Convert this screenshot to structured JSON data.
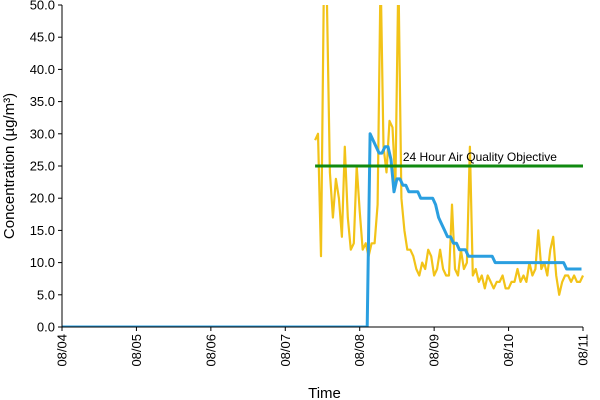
{
  "chart_data": {
    "type": "line",
    "xlabel": "Time",
    "ylabel": "Concentration (µg/m³)",
    "ylim": [
      0,
      50
    ],
    "yticks": [
      "0.0",
      "5.0",
      "10.0",
      "15.0",
      "20.0",
      "25.0",
      "30.0",
      "35.0",
      "40.0",
      "45.0",
      "50.0"
    ],
    "xlim": [
      0,
      7
    ],
    "xticks": [
      "08/04",
      "08/05",
      "08/06",
      "08/07",
      "08/08",
      "08/09",
      "08/10",
      "08/11"
    ],
    "grid": false,
    "legend": "none",
    "annotation": {
      "text": "24 Hour Air Quality Objective",
      "at_value": 25
    },
    "series": [
      {
        "color": "#f2c318",
        "x": [
          3.4,
          3.44,
          3.48,
          3.52,
          3.56,
          3.6,
          3.64,
          3.68,
          3.72,
          3.76,
          3.8,
          3.84,
          3.88,
          3.92,
          3.96,
          4.0,
          4.04,
          4.08,
          4.12,
          4.16,
          4.2,
          4.24,
          4.28,
          4.32,
          4.36,
          4.4,
          4.44,
          4.48,
          4.52,
          4.56,
          4.6,
          4.64,
          4.68,
          4.72,
          4.76,
          4.8,
          4.84,
          4.88,
          4.92,
          4.96,
          5.0,
          5.04,
          5.08,
          5.12,
          5.16,
          5.2,
          5.24,
          5.28,
          5.32,
          5.36,
          5.4,
          5.44,
          5.48,
          5.52,
          5.56,
          5.6,
          5.64,
          5.68,
          5.72,
          5.76,
          5.8,
          5.84,
          5.88,
          5.92,
          5.96,
          6.0,
          6.04,
          6.08,
          6.12,
          6.16,
          6.2,
          6.24,
          6.28,
          6.32,
          6.36,
          6.4,
          6.44,
          6.48,
          6.52,
          6.56,
          6.6,
          6.64,
          6.68,
          6.72,
          6.76,
          6.8,
          6.84,
          6.88,
          6.92,
          6.96,
          7.0
        ],
        "y": [
          29,
          30,
          11,
          55,
          50,
          24,
          17,
          23,
          20,
          14,
          28,
          17,
          12,
          13,
          25,
          18,
          12,
          13,
          11,
          13,
          13,
          19,
          55,
          28,
          24,
          32,
          31,
          22,
          55,
          20,
          15,
          12,
          12,
          11,
          9,
          8,
          10,
          9,
          12,
          11,
          8,
          9,
          12,
          9,
          8,
          8,
          19,
          9,
          8,
          12,
          9,
          10,
          28,
          8,
          9,
          7,
          8,
          6,
          8,
          7,
          6,
          7,
          7,
          8,
          6,
          6,
          7,
          7,
          9,
          7,
          8,
          7,
          10,
          8,
          9,
          15,
          9,
          10,
          8,
          12,
          14,
          8,
          5,
          7,
          8,
          8,
          7,
          8,
          7,
          7,
          8
        ]
      },
      {
        "color": "#2a9fe0",
        "x": [
          0.0,
          4.1,
          4.14,
          4.18,
          4.22,
          4.26,
          4.3,
          4.34,
          4.38,
          4.42,
          4.46,
          4.5,
          4.54,
          4.58,
          4.62,
          4.66,
          4.7,
          4.74,
          4.78,
          4.82,
          4.86,
          4.9,
          4.94,
          4.98,
          5.02,
          5.06,
          5.1,
          5.14,
          5.18,
          5.22,
          5.26,
          5.3,
          5.34,
          5.38,
          5.42,
          5.46,
          5.5,
          5.54,
          5.58,
          5.62,
          5.66,
          5.7,
          5.74,
          5.78,
          5.82,
          5.86,
          5.9,
          5.94,
          5.98,
          6.02,
          6.06,
          6.1,
          6.14,
          6.18,
          6.22,
          6.26,
          6.3,
          6.34,
          6.38,
          6.42,
          6.46,
          6.5,
          6.54,
          6.58,
          6.62,
          6.66,
          6.7,
          6.74,
          6.78,
          6.82,
          6.86,
          6.9,
          6.94,
          6.98
        ],
        "y": [
          0,
          0,
          30,
          29,
          28,
          27,
          27,
          28,
          28,
          26,
          21,
          23,
          23,
          22,
          22,
          21,
          21,
          21,
          21,
          20,
          20,
          20,
          20,
          20,
          19,
          17,
          16,
          15,
          14,
          14,
          13,
          13,
          12,
          12,
          12,
          11,
          11,
          11,
          11,
          11,
          11,
          11,
          11,
          11,
          10,
          10,
          10,
          10,
          10,
          10,
          10,
          10,
          10,
          10,
          10,
          10,
          10,
          10,
          10,
          10,
          10,
          10,
          10,
          10,
          10,
          10,
          10,
          10,
          9,
          9,
          9,
          9,
          9,
          9
        ]
      },
      {
        "color": "#108a10",
        "x": [
          3.4,
          7.0
        ],
        "y": [
          25,
          25
        ]
      }
    ]
  }
}
